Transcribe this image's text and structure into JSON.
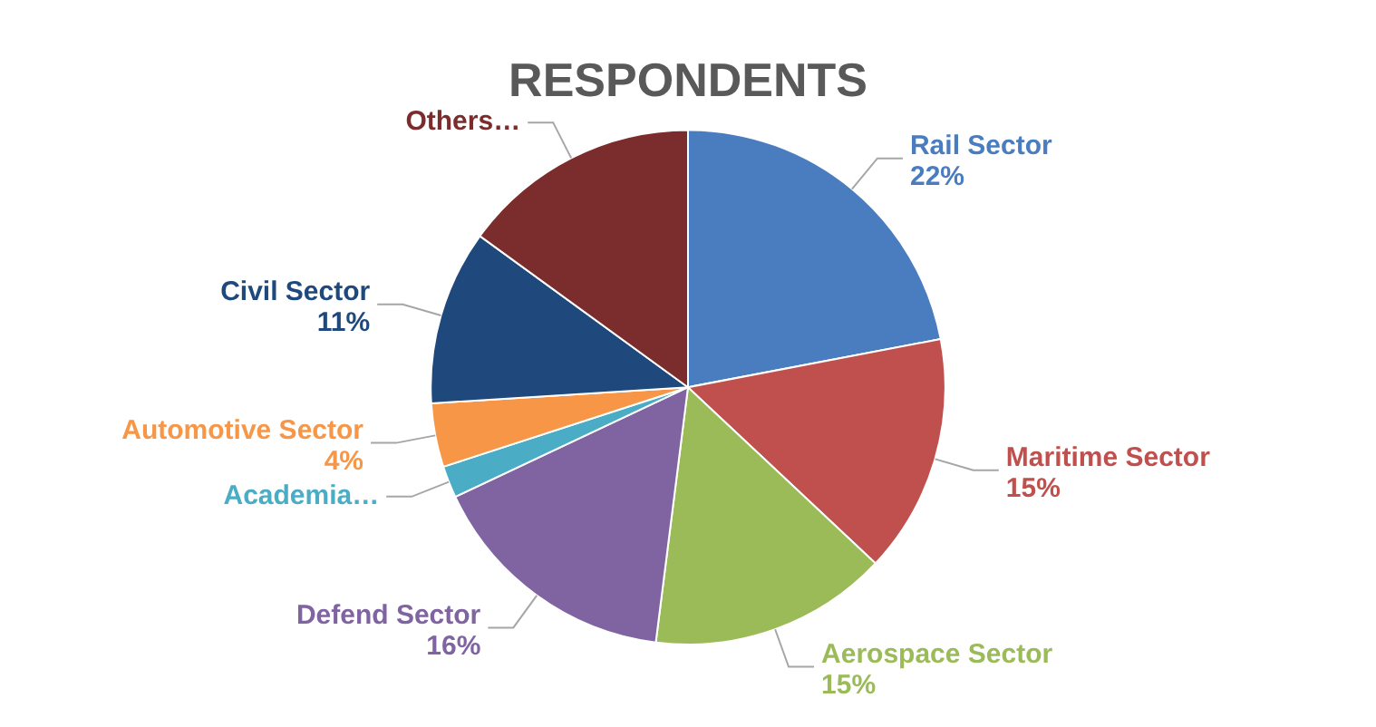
{
  "chart_data": {
    "type": "pie",
    "title": "RESPONDENTS",
    "categories": [
      "Rail Sector",
      "Maritime Sector",
      "Aerospace Sector",
      "Defend Sector",
      "Academia…",
      "Automotive Sector",
      "Civil Sector",
      "Others…"
    ],
    "values": [
      22,
      15,
      15,
      16,
      2,
      4,
      11,
      15
    ],
    "colors": [
      "#4a7cc0",
      "#c0504d",
      "#9bbb59",
      "#8064a2",
      "#4bacc6",
      "#f79646",
      "#1f497d",
      "#7b2c2c"
    ],
    "value_labels": [
      "22%",
      "15%",
      "15%",
      "16%",
      null,
      "4%",
      "11%",
      null
    ]
  }
}
